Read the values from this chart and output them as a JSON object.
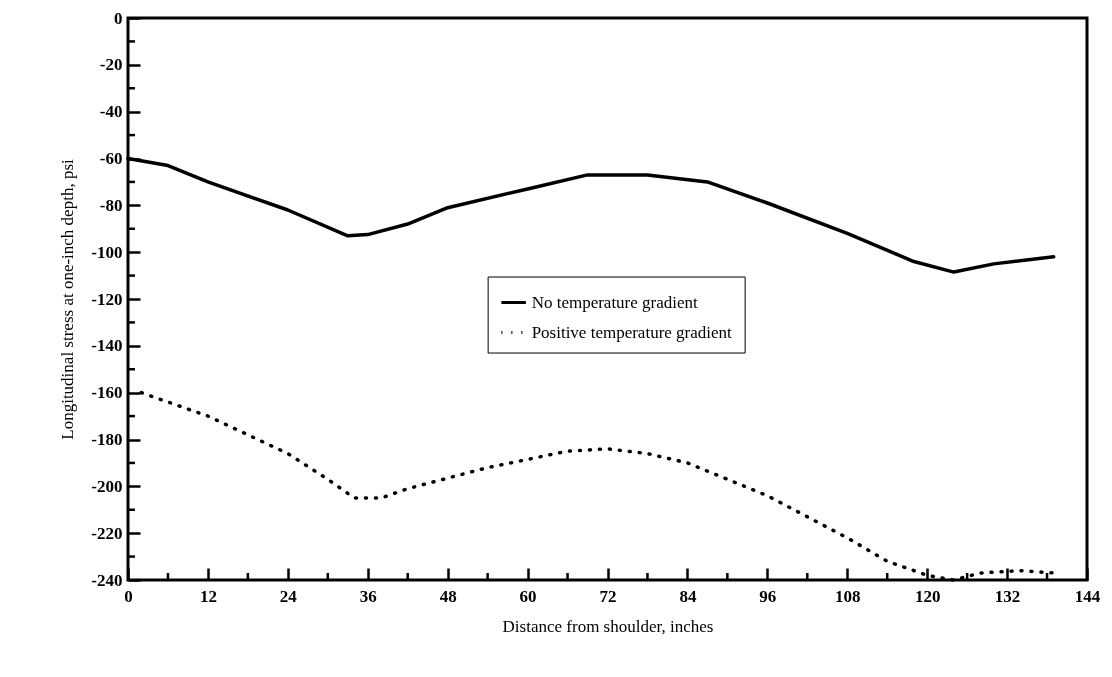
{
  "chart_data": {
    "type": "line",
    "xlabel": "Distance from shoulder, inches",
    "ylabel": "Longitudinal stress at one-inch depth, psi",
    "xlim": [
      0,
      144
    ],
    "ylim": [
      -240,
      0
    ],
    "xticks": [
      0,
      {
        "value": 6,
        "label": null
      },
      12,
      {
        "value": 18,
        "label": null
      },
      24,
      {
        "value": 30,
        "label": null
      },
      36,
      {
        "value": 42,
        "label": null
      },
      48,
      {
        "value": 54,
        "label": null
      },
      60,
      {
        "value": 66,
        "label": null
      },
      72,
      {
        "value": 78,
        "label": null
      },
      84,
      {
        "value": 90,
        "label": null
      },
      96,
      {
        "value": 102,
        "label": null
      },
      108,
      {
        "value": 114,
        "label": null
      },
      120,
      {
        "value": 126,
        "label": null
      },
      132,
      {
        "value": 138,
        "label": null
      },
      144
    ],
    "yticks": [
      -240,
      {
        "value": -230,
        "label": null
      },
      -220,
      {
        "value": -210,
        "label": null
      },
      -200,
      {
        "value": -190,
        "label": null
      },
      -180,
      {
        "value": -170,
        "label": null
      },
      -160,
      {
        "value": -150,
        "label": null
      },
      -140,
      {
        "value": -130,
        "label": null
      },
      -120,
      {
        "value": -110,
        "label": null
      },
      -100,
      {
        "value": -90,
        "label": null
      },
      -80,
      {
        "value": -70,
        "label": null
      },
      -60,
      {
        "value": -50,
        "label": null
      },
      -40,
      {
        "value": -30,
        "label": null
      },
      -20,
      {
        "value": -10,
        "label": null
      },
      0
    ],
    "grid": false,
    "legend": "center",
    "series": [
      {
        "name": "No temperature gradient",
        "color": "#000000",
        "line_style": "solid",
        "x": [
          0,
          6,
          12,
          24,
          33,
          36,
          42,
          48,
          60,
          69,
          78,
          87,
          96,
          108,
          118,
          124,
          130,
          139
        ],
        "values": [
          -60,
          -63,
          -70,
          -82,
          -93,
          -92.5,
          -88,
          -81,
          -73,
          -67,
          -67,
          -70,
          -79,
          -92,
          -104,
          -108.5,
          -105,
          -102
        ]
      },
      {
        "name": "Positive temperature gradient",
        "color": "#000000",
        "line_style": "dotted",
        "x": [
          2,
          12,
          24,
          30,
          34,
          38,
          42,
          54,
          66,
          72,
          78,
          84,
          96,
          108,
          114,
          120,
          124,
          128,
          134,
          139
        ],
        "values": [
          -160,
          -170,
          -186,
          -197,
          -205,
          -205,
          -201,
          -192,
          -185,
          -184,
          -186,
          -190,
          -204,
          -222,
          -232,
          -238,
          -240,
          -237,
          -236,
          -237
        ]
      }
    ]
  }
}
